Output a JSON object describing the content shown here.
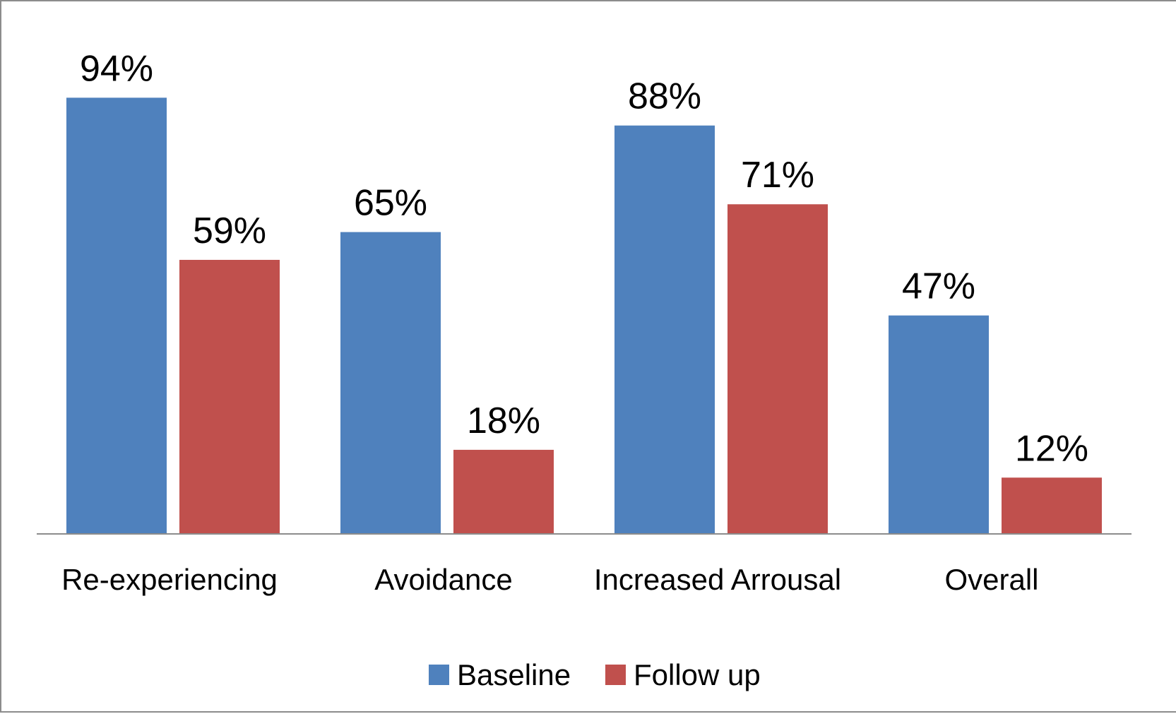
{
  "chart_data": {
    "type": "bar",
    "categories": [
      "Re-experiencing",
      "Avoidance",
      "Increased Arrousal",
      "Overall"
    ],
    "series": [
      {
        "name": "Baseline",
        "values": [
          94,
          65,
          88,
          47
        ],
        "color": "#4f81bd"
      },
      {
        "name": "Follow up",
        "values": [
          59,
          18,
          71,
          12
        ],
        "color": "#c0504d"
      }
    ],
    "data_labels": [
      [
        "94%",
        "65%",
        "88%",
        "47%"
      ],
      [
        "59%",
        "18%",
        "71%",
        "12%"
      ]
    ],
    "title": "",
    "xlabel": "",
    "ylabel": "",
    "ylim": [
      0,
      100
    ],
    "value_axis_visible": false,
    "grid": false,
    "legend": {
      "position": "bottom"
    },
    "axis_color": "#8c8c8c"
  }
}
